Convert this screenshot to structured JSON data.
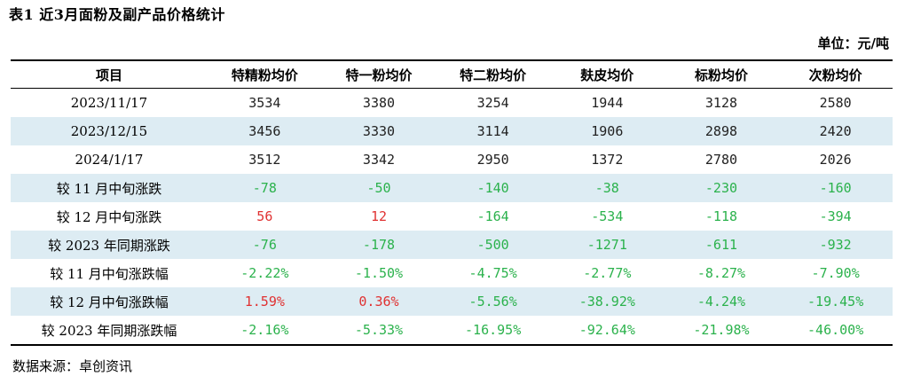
{
  "title": "表1 近3月面粉及副产品价格统计",
  "unit": "单位：元/吨",
  "columns": [
    "项目",
    "特精粉均价",
    "特一粉均价",
    "特二粉均价",
    "麸皮均价",
    "标粉均价",
    "次粉均价"
  ],
  "rows": [
    {
      "label": "2023/11/17",
      "values": [
        "3534",
        "3380",
        "3254",
        "1944",
        "3128",
        "2580"
      ],
      "styles": [
        "neutral",
        "neutral",
        "neutral",
        "neutral",
        "neutral",
        "neutral"
      ]
    },
    {
      "label": "2023/12/15",
      "values": [
        "3456",
        "3330",
        "3114",
        "1906",
        "2898",
        "2420"
      ],
      "styles": [
        "neutral",
        "neutral",
        "neutral",
        "neutral",
        "neutral",
        "neutral"
      ]
    },
    {
      "label": "2024/1/17",
      "values": [
        "3512",
        "3342",
        "2950",
        "1372",
        "2780",
        "2026"
      ],
      "styles": [
        "neutral",
        "neutral",
        "neutral",
        "neutral",
        "neutral",
        "neutral"
      ]
    },
    {
      "label": "较 11 月中旬涨跌",
      "values": [
        "-78",
        "-50",
        "-140",
        "-38",
        "-230",
        "-160"
      ],
      "styles": [
        "neg",
        "neg",
        "neg",
        "neg",
        "neg",
        "neg"
      ]
    },
    {
      "label": "较 12 月中旬涨跌",
      "values": [
        "56",
        "12",
        "-164",
        "-534",
        "-118",
        "-394"
      ],
      "styles": [
        "pos",
        "pos",
        "neg",
        "neg",
        "neg",
        "neg"
      ]
    },
    {
      "label": "较 2023 年同期涨跌",
      "values": [
        "-76",
        "-178",
        "-500",
        "-1271",
        "-611",
        "-932"
      ],
      "styles": [
        "neg",
        "neg",
        "neg",
        "neg",
        "neg",
        "neg"
      ]
    },
    {
      "label": "较 11 月中旬涨跌幅",
      "values": [
        "-2.22%",
        "-1.50%",
        "-4.75%",
        "-2.77%",
        "-8.27%",
        "-7.90%"
      ],
      "styles": [
        "neg",
        "neg",
        "neg",
        "neg",
        "neg",
        "neg"
      ]
    },
    {
      "label": "较 12 月中旬涨跌幅",
      "values": [
        "1.59%",
        "0.36%",
        "-5.56%",
        "-38.92%",
        "-4.24%",
        "-19.45%"
      ],
      "styles": [
        "pos",
        "pos",
        "neg",
        "neg",
        "neg",
        "neg"
      ]
    },
    {
      "label": "较 2023 年同期涨跌幅",
      "values": [
        "-2.16%",
        "-5.33%",
        "-16.95%",
        "-92.64%",
        "-21.98%",
        "-46.00%"
      ],
      "styles": [
        "neg",
        "neg",
        "neg",
        "neg",
        "neg",
        "neg"
      ]
    }
  ],
  "source": "数据来源：卓创资讯",
  "colors": {
    "shade": "#ddecf3",
    "negative": "#2bb24c",
    "positive": "#e03131"
  }
}
